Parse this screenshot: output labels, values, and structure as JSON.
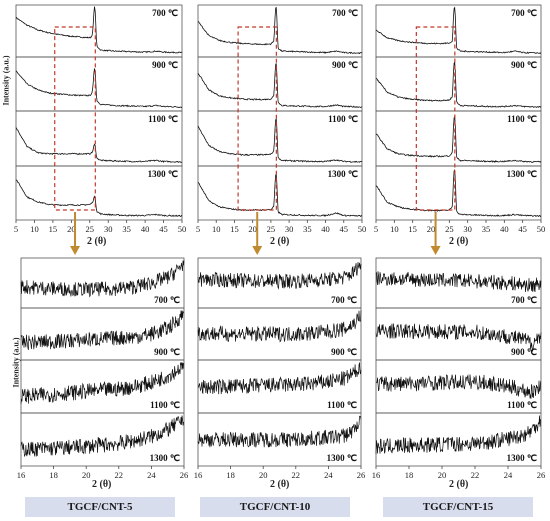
{
  "figure": {
    "y_axis_label": "Intensity (a.u.)",
    "x_axis_label": "2 (θ)",
    "temperatures": [
      "700 ℃",
      "900 ℃",
      "1100 ℃",
      "1300 ℃"
    ],
    "samples": [
      "TGCF/CNT-5",
      "TGCF/CNT-10",
      "TGCF/CNT-15"
    ],
    "colors": {
      "trace": "#111111",
      "frame": "#555555",
      "zoom_box": "#c0392b",
      "arrow": "#c08a2e",
      "label_bg": "#d8ddee"
    }
  },
  "chart_data": [
    {
      "type": "line",
      "panel": "full_range",
      "sample": "TGCF/CNT-5",
      "xlabel": "2 (θ)",
      "ylabel": "Intensity (a.u.)",
      "xlim": [
        5,
        50
      ],
      "xticks": [
        5,
        10,
        15,
        20,
        25,
        30,
        35,
        40,
        45,
        50
      ],
      "series": [
        {
          "name": "700 ℃",
          "peak": 26.3,
          "x": [
            5,
            8,
            11,
            14,
            17,
            20,
            23,
            25,
            26,
            26.3,
            26.7,
            28,
            32,
            36,
            40,
            43,
            45,
            50
          ],
          "y": [
            0.78,
            0.62,
            0.52,
            0.46,
            0.42,
            0.39,
            0.37,
            0.36,
            0.42,
            1.0,
            0.2,
            0.1,
            0.08,
            0.07,
            0.06,
            0.08,
            0.06,
            0.05
          ]
        },
        {
          "name": "900 ℃",
          "peak": 26.3,
          "x": [
            5,
            8,
            11,
            14,
            17,
            20,
            23,
            25,
            26,
            26.3,
            26.7,
            28,
            32,
            36,
            40,
            43,
            45,
            50
          ],
          "y": [
            0.76,
            0.5,
            0.38,
            0.32,
            0.3,
            0.28,
            0.27,
            0.27,
            0.35,
            0.82,
            0.18,
            0.09,
            0.07,
            0.06,
            0.05,
            0.07,
            0.05,
            0.04
          ]
        },
        {
          "name": "1100 ℃",
          "peak": 26.3,
          "x": [
            5,
            8,
            11,
            14,
            17,
            20,
            23,
            25,
            26,
            26.3,
            26.7,
            28,
            32,
            36,
            40,
            43,
            45,
            50
          ],
          "y": [
            0.72,
            0.34,
            0.22,
            0.2,
            0.2,
            0.2,
            0.2,
            0.2,
            0.24,
            0.38,
            0.12,
            0.07,
            0.06,
            0.05,
            0.05,
            0.07,
            0.05,
            0.04
          ]
        },
        {
          "name": "1300 ℃",
          "peak": 26.3,
          "x": [
            5,
            8,
            11,
            14,
            17,
            20,
            23,
            25,
            26,
            26.3,
            26.7,
            28,
            32,
            36,
            40,
            43,
            45,
            50
          ],
          "y": [
            0.78,
            0.42,
            0.32,
            0.27,
            0.26,
            0.26,
            0.26,
            0.27,
            0.32,
            0.42,
            0.14,
            0.08,
            0.06,
            0.05,
            0.05,
            0.07,
            0.05,
            0.04
          ]
        }
      ]
    },
    {
      "type": "line",
      "panel": "full_range",
      "sample": "TGCF/CNT-10",
      "xlabel": "",
      "ylabel": "",
      "xlim": [
        5,
        50
      ],
      "xticks": [
        5,
        10,
        15,
        20,
        25,
        30,
        35,
        40,
        45,
        50
      ],
      "series": [
        {
          "name": "700 ℃",
          "peak": 26.4,
          "x": [
            5,
            8,
            11,
            14,
            17,
            20,
            23,
            25,
            26,
            26.4,
            26.8,
            28,
            32,
            36,
            40,
            43,
            45,
            50
          ],
          "y": [
            0.7,
            0.4,
            0.3,
            0.26,
            0.24,
            0.23,
            0.22,
            0.23,
            0.3,
            1.0,
            0.15,
            0.08,
            0.07,
            0.06,
            0.05,
            0.08,
            0.05,
            0.04
          ]
        },
        {
          "name": "900 ℃",
          "peak": 26.4,
          "x": [
            5,
            8,
            11,
            14,
            17,
            20,
            23,
            25,
            26,
            26.4,
            26.8,
            28,
            32,
            36,
            40,
            43,
            45,
            50
          ],
          "y": [
            0.72,
            0.38,
            0.26,
            0.22,
            0.2,
            0.19,
            0.19,
            0.2,
            0.28,
            0.92,
            0.14,
            0.07,
            0.06,
            0.05,
            0.05,
            0.08,
            0.05,
            0.04
          ]
        },
        {
          "name": "1100 ℃",
          "peak": 26.4,
          "x": [
            5,
            8,
            11,
            14,
            17,
            20,
            23,
            25,
            26,
            26.4,
            26.8,
            28,
            32,
            36,
            40,
            43,
            45,
            50
          ],
          "y": [
            0.74,
            0.36,
            0.24,
            0.2,
            0.18,
            0.18,
            0.18,
            0.19,
            0.27,
            0.9,
            0.13,
            0.07,
            0.06,
            0.05,
            0.05,
            0.08,
            0.05,
            0.04
          ]
        },
        {
          "name": "1300 ℃",
          "peak": 26.4,
          "x": [
            5,
            8,
            11,
            14,
            17,
            20,
            23,
            25,
            26,
            26.4,
            26.8,
            28,
            32,
            36,
            40,
            43,
            45,
            50
          ],
          "y": [
            0.72,
            0.34,
            0.22,
            0.18,
            0.16,
            0.16,
            0.16,
            0.17,
            0.25,
            0.88,
            0.13,
            0.07,
            0.06,
            0.05,
            0.05,
            0.1,
            0.05,
            0.04
          ]
        }
      ]
    },
    {
      "type": "line",
      "panel": "full_range",
      "sample": "TGCF/CNT-15",
      "xlabel": "",
      "ylabel": "",
      "xlim": [
        5,
        50
      ],
      "xticks": [
        5,
        10,
        15,
        20,
        25,
        30,
        35,
        40,
        45,
        50
      ],
      "series": [
        {
          "name": "700 ℃",
          "peak": 26.4,
          "x": [
            5,
            8,
            11,
            14,
            17,
            20,
            23,
            25,
            26,
            26.4,
            26.8,
            28,
            32,
            36,
            40,
            43,
            45,
            50
          ],
          "y": [
            0.52,
            0.36,
            0.3,
            0.27,
            0.25,
            0.24,
            0.24,
            0.25,
            0.3,
            1.0,
            0.15,
            0.08,
            0.07,
            0.06,
            0.05,
            0.08,
            0.05,
            0.04
          ]
        },
        {
          "name": "900 ℃",
          "peak": 26.4,
          "x": [
            5,
            8,
            11,
            14,
            17,
            20,
            23,
            25,
            26,
            26.4,
            26.8,
            28,
            32,
            36,
            40,
            43,
            45,
            50
          ],
          "y": [
            0.62,
            0.34,
            0.24,
            0.2,
            0.18,
            0.17,
            0.17,
            0.18,
            0.26,
            0.95,
            0.14,
            0.07,
            0.06,
            0.05,
            0.05,
            0.07,
            0.05,
            0.04
          ]
        },
        {
          "name": "1100 ℃",
          "peak": 26.4,
          "x": [
            5,
            8,
            11,
            14,
            17,
            20,
            23,
            25,
            26,
            26.4,
            26.8,
            28,
            32,
            36,
            40,
            43,
            45,
            50
          ],
          "y": [
            0.6,
            0.3,
            0.2,
            0.17,
            0.16,
            0.15,
            0.15,
            0.16,
            0.24,
            0.95,
            0.13,
            0.07,
            0.06,
            0.05,
            0.05,
            0.07,
            0.05,
            0.04
          ]
        },
        {
          "name": "1300 ℃",
          "peak": 26.4,
          "x": [
            5,
            8,
            11,
            14,
            17,
            20,
            23,
            25,
            26,
            26.4,
            26.8,
            28,
            32,
            36,
            40,
            43,
            45,
            50
          ],
          "y": [
            0.66,
            0.32,
            0.22,
            0.18,
            0.16,
            0.15,
            0.15,
            0.16,
            0.24,
            0.98,
            0.13,
            0.07,
            0.06,
            0.05,
            0.05,
            0.07,
            0.05,
            0.04
          ]
        }
      ]
    },
    {
      "type": "line",
      "panel": "zoom",
      "sample": "TGCF/CNT-5",
      "xlabel": "2 (θ)",
      "ylabel": "Intensity (a.u.)",
      "xlim": [
        16,
        26
      ],
      "xticks": [
        16,
        18,
        20,
        22,
        24,
        26
      ],
      "series": [
        {
          "name": "700 ℃",
          "x": [
            16,
            18,
            20,
            22,
            23,
            24,
            25,
            25.5,
            26
          ],
          "y": [
            0.42,
            0.38,
            0.36,
            0.38,
            0.42,
            0.5,
            0.62,
            0.75,
            0.95
          ]
        },
        {
          "name": "900 ℃",
          "x": [
            16,
            18,
            20,
            22,
            23,
            24,
            25,
            25.5,
            26
          ],
          "y": [
            0.32,
            0.34,
            0.38,
            0.42,
            0.44,
            0.5,
            0.62,
            0.75,
            0.95
          ]
        },
        {
          "name": "1100 ℃",
          "x": [
            16,
            18,
            20,
            22,
            23,
            24,
            25,
            25.5,
            26
          ],
          "y": [
            0.3,
            0.34,
            0.4,
            0.45,
            0.5,
            0.58,
            0.72,
            0.82,
            0.95
          ]
        },
        {
          "name": "1300 ℃",
          "x": [
            16,
            18,
            20,
            22,
            23,
            24,
            25,
            25.5,
            26
          ],
          "y": [
            0.3,
            0.32,
            0.36,
            0.42,
            0.48,
            0.56,
            0.7,
            0.8,
            0.95
          ]
        }
      ]
    },
    {
      "type": "line",
      "panel": "zoom",
      "sample": "TGCF/CNT-10",
      "xlabel": "",
      "ylabel": "",
      "xlim": [
        16,
        26
      ],
      "xticks": [
        16,
        18,
        20,
        22,
        24,
        26
      ],
      "series": [
        {
          "name": "700 ℃",
          "x": [
            16,
            18,
            20,
            22,
            23,
            24,
            25,
            25.5,
            26
          ],
          "y": [
            0.58,
            0.56,
            0.54,
            0.54,
            0.56,
            0.58,
            0.62,
            0.72,
            0.92
          ]
        },
        {
          "name": "900 ℃",
          "x": [
            16,
            18,
            20,
            22,
            23,
            24,
            25,
            25.5,
            26
          ],
          "y": [
            0.52,
            0.5,
            0.5,
            0.5,
            0.52,
            0.55,
            0.6,
            0.7,
            0.9
          ]
        },
        {
          "name": "1100 ℃",
          "x": [
            16,
            18,
            20,
            22,
            23,
            24,
            25,
            25.5,
            26
          ],
          "y": [
            0.48,
            0.5,
            0.52,
            0.54,
            0.56,
            0.6,
            0.66,
            0.75,
            0.92
          ]
        },
        {
          "name": "1300 ℃",
          "x": [
            16,
            18,
            20,
            22,
            23,
            24,
            25,
            25.5,
            26
          ],
          "y": [
            0.5,
            0.5,
            0.5,
            0.5,
            0.52,
            0.54,
            0.58,
            0.68,
            0.9
          ]
        }
      ]
    },
    {
      "type": "line",
      "panel": "zoom",
      "sample": "TGCF/CNT-15",
      "xlabel": "",
      "ylabel": "",
      "xlim": [
        16,
        26
      ],
      "xticks": [
        16,
        18,
        20,
        22,
        24,
        26
      ],
      "series": [
        {
          "name": "700 ℃",
          "x": [
            16,
            18,
            20,
            22,
            23,
            24,
            25,
            25.5,
            26
          ],
          "y": [
            0.6,
            0.58,
            0.56,
            0.54,
            0.52,
            0.5,
            0.46,
            0.44,
            0.5
          ]
        },
        {
          "name": "900 ℃",
          "x": [
            16,
            18,
            20,
            22,
            23,
            24,
            25,
            25.5,
            26
          ],
          "y": [
            0.56,
            0.56,
            0.55,
            0.54,
            0.5,
            0.45,
            0.38,
            0.3,
            0.5
          ]
        },
        {
          "name": "1100 ℃",
          "x": [
            16,
            18,
            20,
            22,
            23,
            24,
            25,
            25.5,
            26
          ],
          "y": [
            0.55,
            0.56,
            0.58,
            0.6,
            0.56,
            0.5,
            0.42,
            0.38,
            0.55
          ]
        },
        {
          "name": "1300 ℃",
          "x": [
            16,
            18,
            20,
            22,
            23,
            24,
            25,
            25.5,
            26
          ],
          "y": [
            0.35,
            0.38,
            0.4,
            0.42,
            0.46,
            0.52,
            0.6,
            0.7,
            0.92
          ]
        }
      ]
    }
  ]
}
